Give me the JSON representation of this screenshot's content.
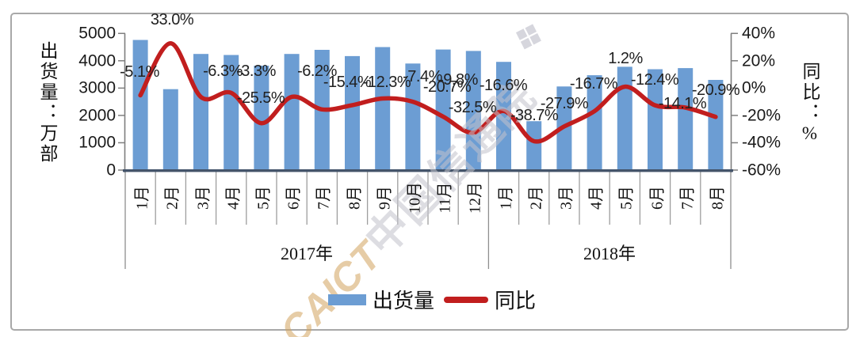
{
  "chart_data": {
    "type": "bar+line",
    "title": "",
    "left_axis": {
      "title": "出货量：万部",
      "tick_labels": [
        "5000",
        "4000",
        "3000",
        "2000",
        "1000",
        "0"
      ],
      "min": 0,
      "max": 5000
    },
    "right_axis": {
      "title": "同比：%",
      "tick_labels": [
        "40%",
        "20%",
        "0%",
        "-20%",
        "-40%",
        "-60%"
      ],
      "min": -60,
      "max": 40
    },
    "groups": [
      {
        "year": "2017年",
        "months": [
          "1月",
          "2月",
          "3月",
          "4月",
          "5月",
          "6月",
          "7月",
          "8月",
          "9月",
          "10月",
          "11月",
          "12月"
        ]
      },
      {
        "year": "2018年",
        "months": [
          "1月",
          "2月",
          "3月",
          "4月",
          "5月",
          "6月",
          "7月",
          "8月"
        ]
      }
    ],
    "series": [
      {
        "name": "出货量",
        "type": "bar",
        "color": "#6C9DD3",
        "values": [
          4760,
          2960,
          4250,
          4210,
          3820,
          4250,
          4400,
          4170,
          4500,
          3900,
          4410,
          4360,
          3960,
          1790,
          3060,
          3470,
          3780,
          3690,
          3730,
          3300
        ]
      },
      {
        "name": "同比",
        "type": "line",
        "color": "#C11E1E",
        "values": [
          -5.1,
          33.0,
          -6.3,
          -3.3,
          -25.5,
          -6.2,
          -15.4,
          -12.3,
          -7.4,
          -9.8,
          -20.7,
          -32.5,
          -16.6,
          -38.7,
          -27.9,
          -16.7,
          1.2,
          -12.4,
          -14.1,
          -20.9
        ],
        "labels": [
          "-5.1%",
          "33.0%",
          "-6.3%",
          "-3.3%",
          "-25.5%",
          "-6.2%",
          "-15.4%",
          "-12.3%",
          "-7.4%",
          "-9.8%",
          "-20.7%",
          "-32.5%",
          "-16.6%",
          "-38.7%",
          "-27.9%",
          "-16.7%",
          "1.2%",
          "-12.4%",
          "-14.1%",
          "-20.9%"
        ]
      }
    ],
    "legend": [
      "出货量",
      "同比"
    ],
    "watermark": {
      "latin": "CAICT",
      "cjk": "中国信通院",
      "logo": "❖"
    },
    "colors": {
      "bar": "#6C9DD3",
      "line": "#C11E1E",
      "baseline": "#44546A",
      "axis": "#7F7F7F",
      "separator": "#9E9E9E"
    }
  }
}
